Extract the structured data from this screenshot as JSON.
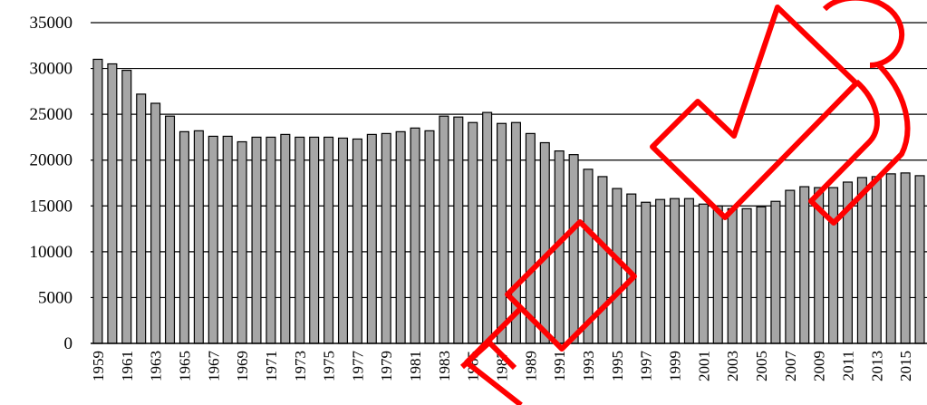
{
  "chart_data": {
    "type": "bar",
    "title": "",
    "xlabel": "",
    "ylabel": "",
    "ylim": [
      0,
      35000
    ],
    "yticks": [
      0,
      5000,
      10000,
      15000,
      20000,
      25000,
      30000,
      35000
    ],
    "x_tick_labels": [
      "1959",
      "1961",
      "1963",
      "1965",
      "1967",
      "1969",
      "1971",
      "1973",
      "1975",
      "1977",
      "1979",
      "1981",
      "1983",
      "1985",
      "1987",
      "1989",
      "1991",
      "1993",
      "1995",
      "1997",
      "1999",
      "2001",
      "2003",
      "2005",
      "2007",
      "2009",
      "2011",
      "2013",
      "2015"
    ],
    "categories": [
      "1959",
      "1960",
      "1961",
      "1962",
      "1963",
      "1964",
      "1965",
      "1966",
      "1967",
      "1968",
      "1969",
      "1970",
      "1971",
      "1972",
      "1973",
      "1974",
      "1975",
      "1976",
      "1977",
      "1978",
      "1979",
      "1980",
      "1981",
      "1982",
      "1983",
      "1984",
      "1985",
      "1986",
      "1987",
      "1988",
      "1989",
      "1990",
      "1991",
      "1992",
      "1993",
      "1994",
      "1995",
      "1996",
      "1997",
      "1998",
      "1999",
      "2000",
      "2001",
      "2002",
      "2003",
      "2004",
      "2005",
      "2006",
      "2007",
      "2008",
      "2009",
      "2010",
      "2011",
      "2012",
      "2013",
      "2014",
      "2015",
      "2016"
    ],
    "values": [
      31000,
      30500,
      29800,
      27200,
      26200,
      24800,
      23100,
      23200,
      22600,
      22600,
      22000,
      22500,
      22500,
      22800,
      22500,
      22500,
      22500,
      22400,
      22300,
      22800,
      22900,
      23100,
      23500,
      23200,
      24800,
      24700,
      24100,
      25200,
      24000,
      24100,
      22900,
      21900,
      21000,
      20600,
      19000,
      18200,
      16900,
      16300,
      15400,
      15700,
      15800,
      15800,
      15200,
      15000,
      14700,
      14700,
      14900,
      15500,
      16700,
      17100,
      17000,
      17000,
      17600,
      18100,
      18200,
      18500,
      18600,
      18300
    ],
    "grid": true,
    "bar_color": "#a6a6a6",
    "bar_edge_color": "#000000",
    "watermark_color": "#ff0000"
  }
}
